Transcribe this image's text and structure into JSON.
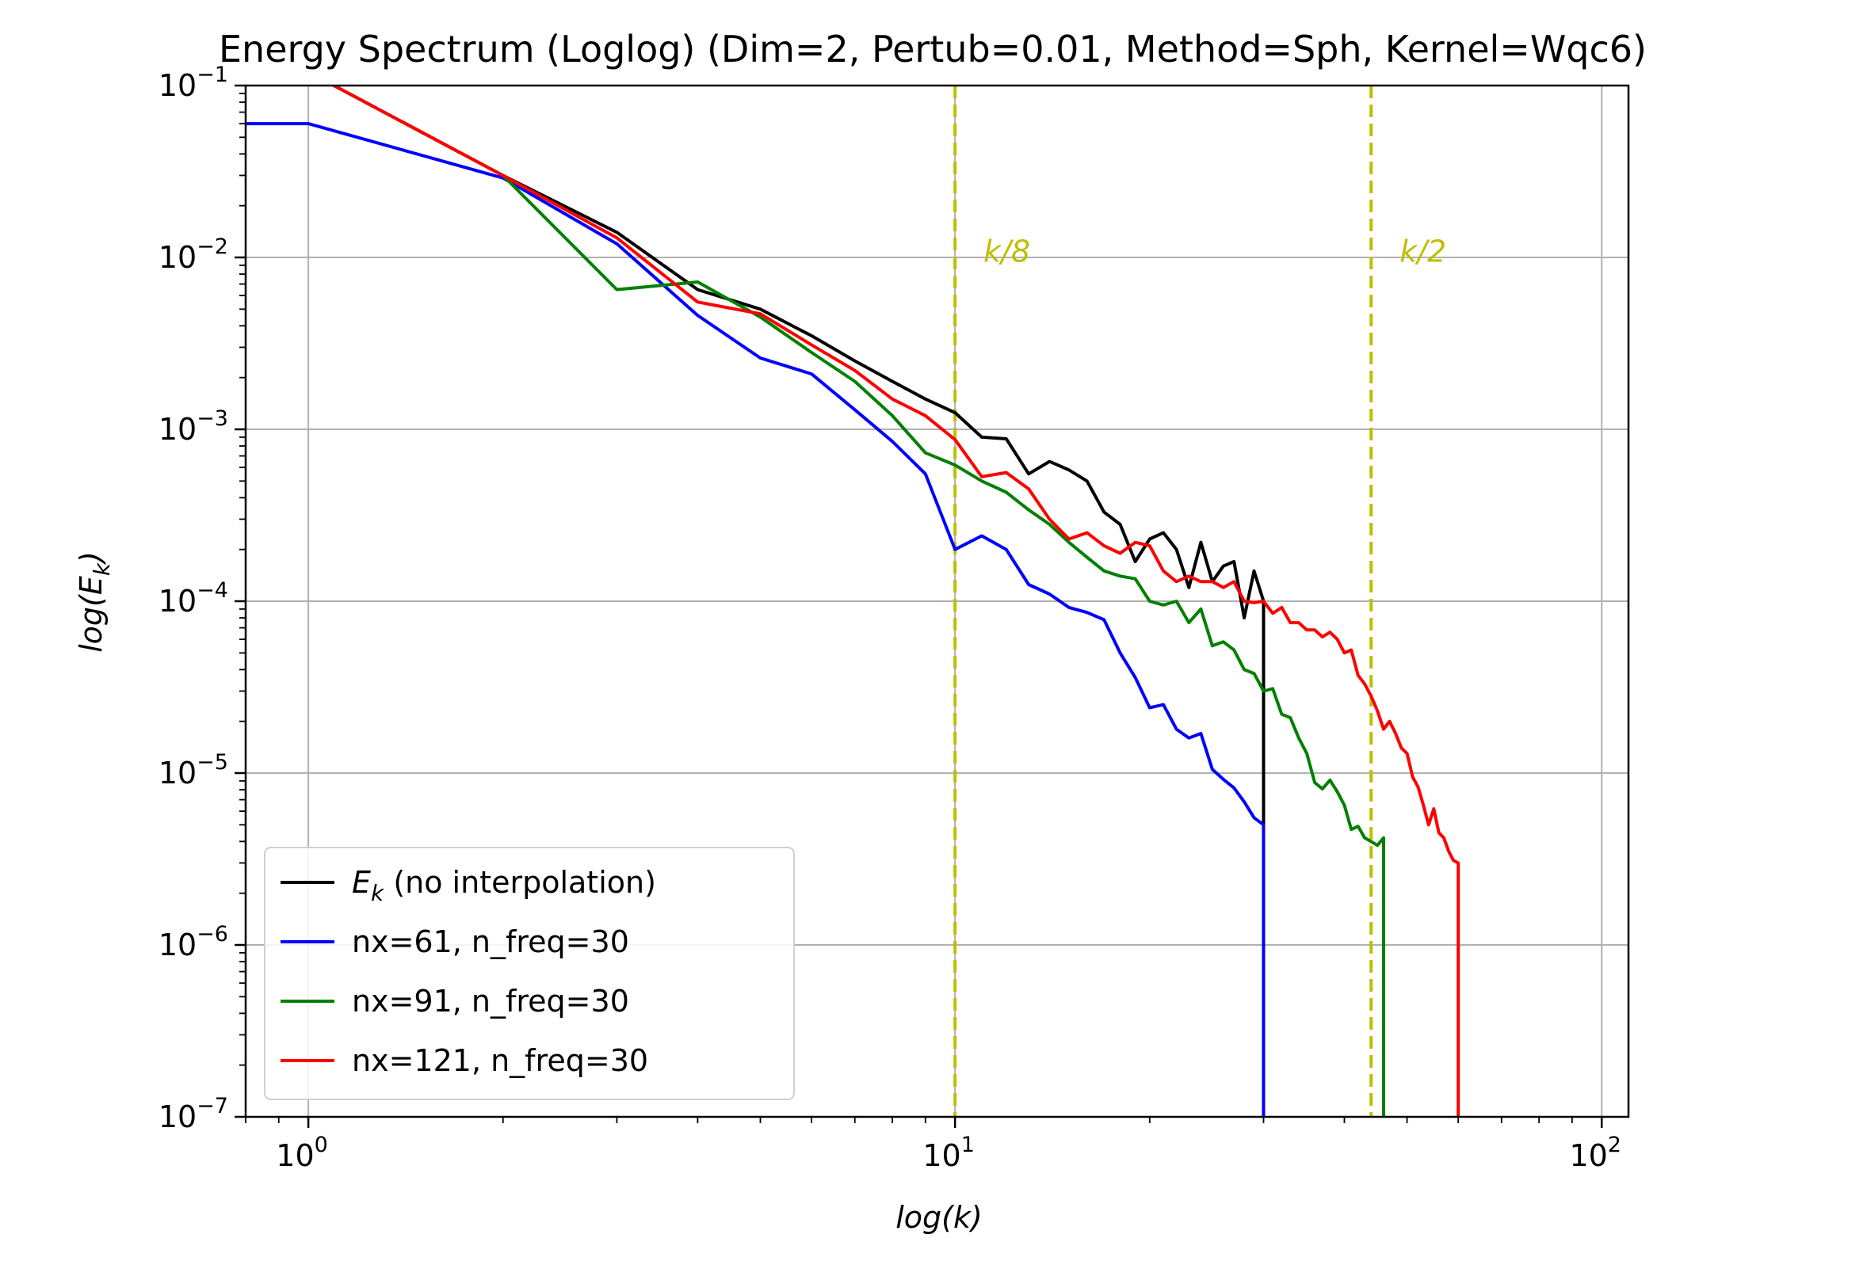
{
  "chart_data": {
    "type": "line",
    "title": "Energy Spectrum (Loglog) (Dim=2, Pertub=0.01, Method=Sph, Kernel=Wqc6)",
    "xlabel": "log(k)",
    "ylabel": "log(E_k)",
    "xscale": "log",
    "yscale": "log",
    "xlim": [
      0.8,
      110
    ],
    "ylim": [
      1e-07,
      0.1
    ],
    "grid": true,
    "legend_position": "lower-left",
    "x_ticks": [
      {
        "mantissa": "10",
        "exp": "0"
      },
      {
        "mantissa": "10",
        "exp": "1"
      },
      {
        "mantissa": "10",
        "exp": "2"
      }
    ],
    "y_ticks": [
      {
        "mantissa": "10",
        "exp": "−7"
      },
      {
        "mantissa": "10",
        "exp": "−6"
      },
      {
        "mantissa": "10",
        "exp": "−5"
      },
      {
        "mantissa": "10",
        "exp": "−4"
      },
      {
        "mantissa": "10",
        "exp": "−3"
      },
      {
        "mantissa": "10",
        "exp": "−2"
      },
      {
        "mantissa": "10",
        "exp": "−1"
      }
    ],
    "vlines": [
      {
        "x": 10,
        "label": "k/8",
        "color": "#bfbf00",
        "label_y": 0.0105
      },
      {
        "x": 44,
        "label": "k/2",
        "color": "#bfbf00",
        "label_y": 0.0105
      }
    ],
    "series": [
      {
        "name": "E_k (no interpolation)",
        "name_main": "E",
        "name_sub": "k",
        "name_rest": " (no interpolation)",
        "color": "#000000",
        "points": [
          [
            1,
            0.12
          ],
          [
            2,
            0.03
          ],
          [
            3,
            0.014
          ],
          [
            4,
            0.0065
          ],
          [
            5,
            0.005
          ],
          [
            6,
            0.0035
          ],
          [
            7,
            0.0025
          ],
          [
            8,
            0.0019
          ],
          [
            9,
            0.0015
          ],
          [
            10,
            0.00125
          ],
          [
            11,
            0.0009
          ],
          [
            12,
            0.00088
          ],
          [
            13,
            0.00055
          ],
          [
            14,
            0.00065
          ],
          [
            15,
            0.00058
          ],
          [
            16,
            0.0005
          ],
          [
            17,
            0.00033
          ],
          [
            18,
            0.00028
          ],
          [
            19,
            0.00017
          ],
          [
            20,
            0.00023
          ],
          [
            21,
            0.00025
          ],
          [
            22,
            0.0002
          ],
          [
            23,
            0.00012
          ],
          [
            24,
            0.00022
          ],
          [
            25,
            0.00013
          ],
          [
            26,
            0.00016
          ],
          [
            27,
            0.00017
          ],
          [
            28,
            8e-05
          ],
          [
            29,
            0.00015
          ],
          [
            30,
            0.0001
          ],
          [
            30,
            1e-07
          ]
        ]
      },
      {
        "name": "nx=61, n_freq=30",
        "color": "#0000ff",
        "points": [
          [
            0.8,
            0.06
          ],
          [
            1,
            0.06
          ],
          [
            2,
            0.029
          ],
          [
            3,
            0.012
          ],
          [
            4,
            0.0046
          ],
          [
            5,
            0.0026
          ],
          [
            6,
            0.0021
          ],
          [
            7,
            0.0013
          ],
          [
            8,
            0.00085
          ],
          [
            9,
            0.00055
          ],
          [
            10,
            0.0002
          ],
          [
            11,
            0.00024
          ],
          [
            12,
            0.0002
          ],
          [
            13,
            0.000125
          ],
          [
            14,
            0.00011
          ],
          [
            15,
            9.2e-05
          ],
          [
            16,
            8.6e-05
          ],
          [
            17,
            7.8e-05
          ],
          [
            18,
            5e-05
          ],
          [
            19,
            3.6e-05
          ],
          [
            20,
            2.4e-05
          ],
          [
            21,
            2.5e-05
          ],
          [
            22,
            1.8e-05
          ],
          [
            23,
            1.6e-05
          ],
          [
            24,
            1.7e-05
          ],
          [
            25,
            1.05e-05
          ],
          [
            26,
            9.2e-06
          ],
          [
            27,
            8.2e-06
          ],
          [
            28,
            6.8e-06
          ],
          [
            29,
            5.5e-06
          ],
          [
            30,
            5e-06
          ],
          [
            30,
            1e-07
          ]
        ]
      },
      {
        "name": "nx=91, n_freq=30",
        "color": "#008000",
        "points": [
          [
            2,
            0.03
          ],
          [
            3,
            0.0065
          ],
          [
            4,
            0.0072
          ],
          [
            5,
            0.0045
          ],
          [
            6,
            0.0028
          ],
          [
            7,
            0.0019
          ],
          [
            8,
            0.0012
          ],
          [
            9,
            0.00073
          ],
          [
            10,
            0.00062
          ],
          [
            11,
            0.0005
          ],
          [
            12,
            0.00043
          ],
          [
            13,
            0.00034
          ],
          [
            14,
            0.00028
          ],
          [
            15,
            0.00022
          ],
          [
            16,
            0.00018
          ],
          [
            17,
            0.00015
          ],
          [
            18,
            0.00014
          ],
          [
            19,
            0.000135
          ],
          [
            20,
            0.0001
          ],
          [
            21,
            9.5e-05
          ],
          [
            22,
            0.0001
          ],
          [
            23,
            7.5e-05
          ],
          [
            24,
            9e-05
          ],
          [
            25,
            5.5e-05
          ],
          [
            26,
            5.8e-05
          ],
          [
            27,
            5.2e-05
          ],
          [
            28,
            4e-05
          ],
          [
            29,
            3.8e-05
          ],
          [
            30,
            3e-05
          ],
          [
            31,
            3.1e-05
          ],
          [
            32,
            2.2e-05
          ],
          [
            33,
            2.1e-05
          ],
          [
            34,
            1.6e-05
          ],
          [
            35,
            1.3e-05
          ],
          [
            36,
            8.8e-06
          ],
          [
            37,
            8.1e-06
          ],
          [
            38,
            9.1e-06
          ],
          [
            39,
            7.8e-06
          ],
          [
            40,
            6.5e-06
          ],
          [
            41,
            4.7e-06
          ],
          [
            42,
            4.9e-06
          ],
          [
            43,
            4.2e-06
          ],
          [
            44,
            4e-06
          ],
          [
            45,
            3.8e-06
          ],
          [
            46,
            4.2e-06
          ],
          [
            46,
            1e-07
          ]
        ]
      },
      {
        "name": "nx=121, n_freq=30",
        "color": "#ff0000",
        "points": [
          [
            1,
            0.12
          ],
          [
            2,
            0.03
          ],
          [
            3,
            0.013
          ],
          [
            4,
            0.0055
          ],
          [
            5,
            0.0047
          ],
          [
            6,
            0.0031
          ],
          [
            7,
            0.0022
          ],
          [
            8,
            0.0015
          ],
          [
            9,
            0.0012
          ],
          [
            10,
            0.00087
          ],
          [
            11,
            0.00053
          ],
          [
            12,
            0.00056
          ],
          [
            13,
            0.00045
          ],
          [
            14,
            0.0003
          ],
          [
            15,
            0.00023
          ],
          [
            16,
            0.00025
          ],
          [
            17,
            0.00021
          ],
          [
            18,
            0.00019
          ],
          [
            19,
            0.00022
          ],
          [
            20,
            0.00021
          ],
          [
            21,
            0.00015
          ],
          [
            22,
            0.00013
          ],
          [
            23,
            0.00014
          ],
          [
            24,
            0.00013
          ],
          [
            25,
            0.00013
          ],
          [
            26,
            0.00012
          ],
          [
            27,
            0.00013
          ],
          [
            28,
            0.0001
          ],
          [
            29,
            9.8e-05
          ],
          [
            30,
            0.0001
          ],
          [
            31,
            8.5e-05
          ],
          [
            32,
            9.2e-05
          ],
          [
            33,
            7.5e-05
          ],
          [
            34,
            7.5e-05
          ],
          [
            35,
            6.8e-05
          ],
          [
            36,
            6.8e-05
          ],
          [
            37,
            6.2e-05
          ],
          [
            38,
            6.6e-05
          ],
          [
            39,
            6e-05
          ],
          [
            40,
            5e-05
          ],
          [
            41,
            5.2e-05
          ],
          [
            42,
            3.7e-05
          ],
          [
            43,
            3.3e-05
          ],
          [
            44,
            2.8e-05
          ],
          [
            45,
            2.3e-05
          ],
          [
            46,
            1.8e-05
          ],
          [
            47,
            2e-05
          ],
          [
            48,
            1.7e-05
          ],
          [
            49,
            1.4e-05
          ],
          [
            50,
            1.3e-05
          ],
          [
            51,
            9.5e-06
          ],
          [
            52,
            8.3e-06
          ],
          [
            53,
            6.5e-06
          ],
          [
            54,
            5e-06
          ],
          [
            55,
            6.2e-06
          ],
          [
            56,
            4.5e-06
          ],
          [
            57,
            4.2e-06
          ],
          [
            58,
            3.5e-06
          ],
          [
            59,
            3.1e-06
          ],
          [
            60,
            3e-06
          ],
          [
            60,
            1e-07
          ]
        ]
      }
    ]
  }
}
